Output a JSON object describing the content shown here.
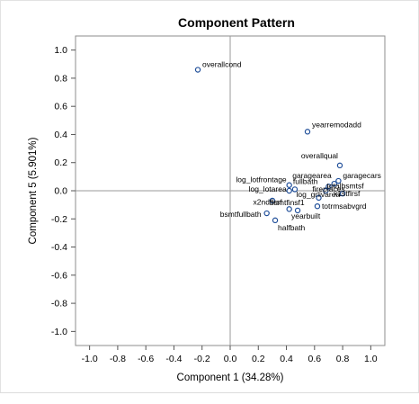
{
  "chart_data": {
    "type": "scatter",
    "title": "Component Pattern",
    "xlabel": "Component 1 (34.28%)",
    "ylabel": "Component 5 (5.901%)",
    "xlim": [
      -1.1,
      1.1
    ],
    "ylim": [
      -1.1,
      1.1
    ],
    "x_ticks": [
      "-1.0",
      "-0.8",
      "-0.6",
      "-0.4",
      "-0.2",
      "0.0",
      "0.2",
      "0.4",
      "0.6",
      "0.8",
      "1.0"
    ],
    "y_ticks": [
      "1.0",
      "0.8",
      "0.6",
      "0.4",
      "0.2",
      "0.0",
      "-0.2",
      "-0.4",
      "-0.6",
      "-0.8",
      "-1.0"
    ],
    "reference_lines": true,
    "marker_color": "#1f4e99",
    "points": [
      {
        "label": "overallcond",
        "x": -0.23,
        "y": 0.86
      },
      {
        "label": "yearremodadd",
        "x": 0.55,
        "y": 0.42
      },
      {
        "label": "overallqual",
        "x": 0.78,
        "y": 0.18
      },
      {
        "label": "garagecars",
        "x": 0.77,
        "y": 0.07
      },
      {
        "label": "garagearea",
        "x": 0.74,
        "y": 0.05
      },
      {
        "label": "totalbsmtsf",
        "x": 0.7,
        "y": 0.03
      },
      {
        "label": "log_lotfrontage",
        "x": 0.42,
        "y": 0.04
      },
      {
        "label": "fullbath",
        "x": 0.46,
        "y": 0.01
      },
      {
        "label": "log_lotarea",
        "x": 0.42,
        "y": 0.0
      },
      {
        "label": "fireplaces",
        "x": 0.68,
        "y": 0.0
      },
      {
        "label": "x1stflrsf",
        "x": 0.8,
        "y": -0.02
      },
      {
        "label": "log_grlivarea",
        "x": 0.63,
        "y": -0.05
      },
      {
        "label": "bsmtfinsf1",
        "x": 0.3,
        "y": -0.07
      },
      {
        "label": "totrmsabvgrd",
        "x": 0.62,
        "y": -0.11
      },
      {
        "label": "x2ndflrsf",
        "x": 0.42,
        "y": -0.13
      },
      {
        "label": "bsmtfullbath",
        "x": 0.26,
        "y": -0.16
      },
      {
        "label": "yearbuilt",
        "x": 0.48,
        "y": -0.14
      },
      {
        "label": "halfbath",
        "x": 0.32,
        "y": -0.21
      }
    ]
  }
}
